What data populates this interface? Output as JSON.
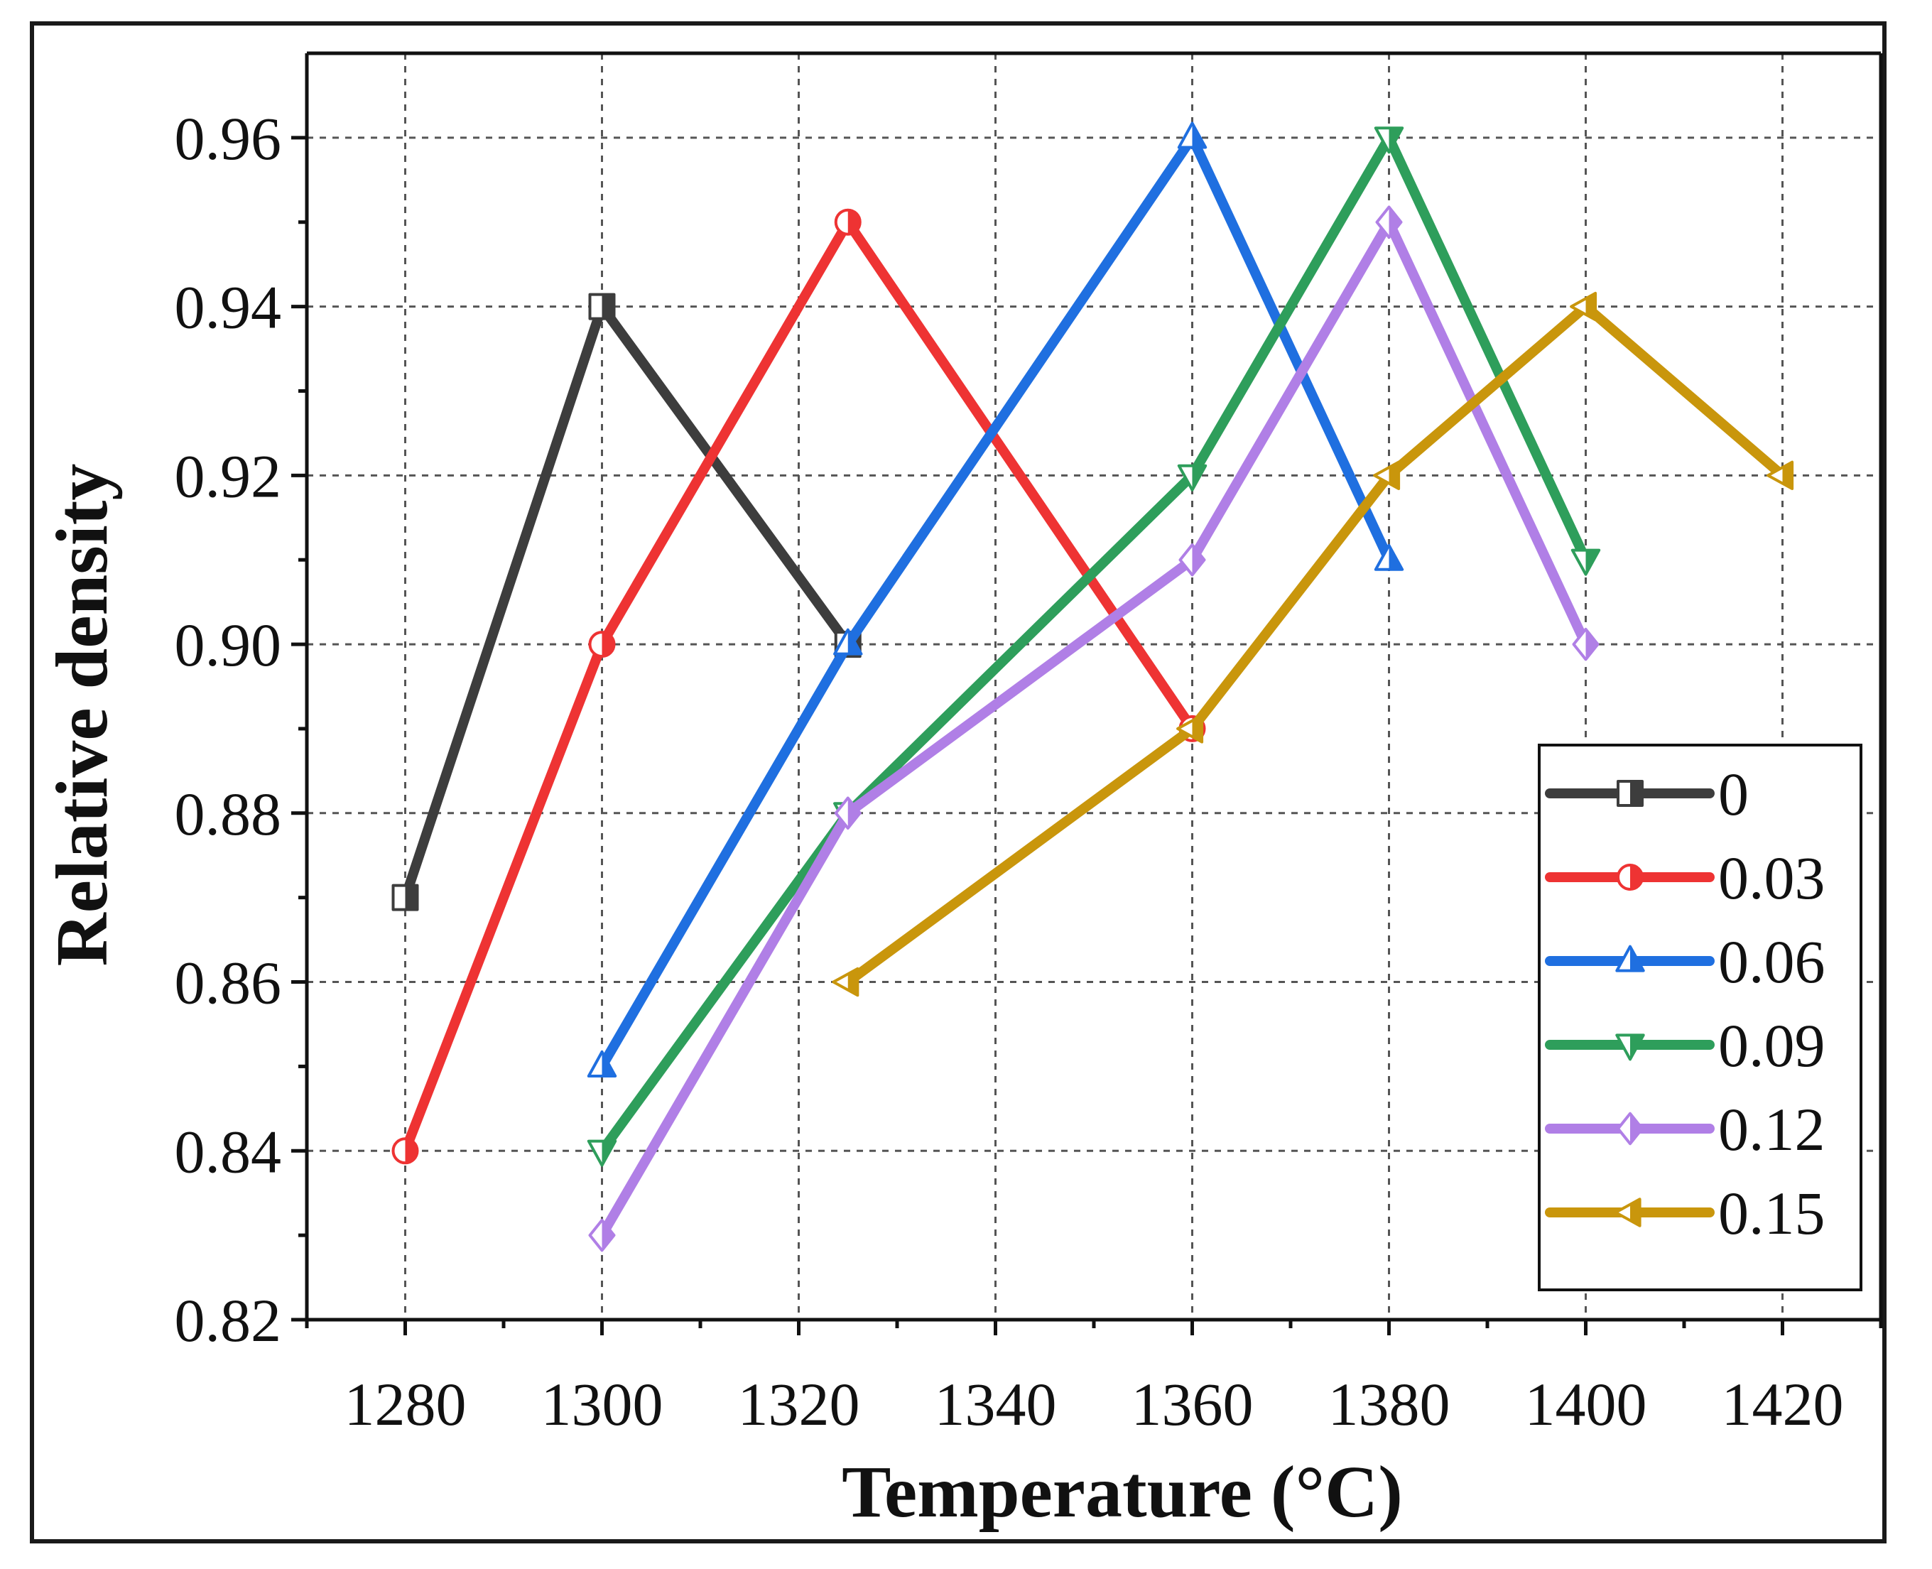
{
  "chart_data": {
    "type": "line",
    "title": "",
    "xlabel": "Temperature (°C)",
    "ylabel": "Relative density",
    "xlim": [
      1270,
      1430
    ],
    "ylim": [
      0.82,
      0.97
    ],
    "xticks": [
      1280,
      1300,
      1320,
      1340,
      1360,
      1380,
      1400,
      1420
    ],
    "yticks": [
      0.82,
      0.84,
      0.86,
      0.88,
      0.9,
      0.92,
      0.94,
      0.96
    ],
    "xtick_labels": [
      "1280",
      "1300",
      "1320",
      "1340",
      "1360",
      "1380",
      "1400",
      "1420"
    ],
    "ytick_labels": [
      "0.82",
      "0.84",
      "0.86",
      "0.88",
      "0.90",
      "0.92",
      "0.94",
      "0.96"
    ],
    "grid": true,
    "legend_position": "bottom-right",
    "series": [
      {
        "name": "0",
        "color": "#3d3d3d",
        "marker": "square",
        "x": [
          1280,
          1300,
          1325
        ],
        "y": [
          0.87,
          0.94,
          0.9
        ]
      },
      {
        "name": "0.03",
        "color": "#ee3333",
        "marker": "circle",
        "x": [
          1280,
          1300,
          1325,
          1360
        ],
        "y": [
          0.84,
          0.9,
          0.95,
          0.89
        ]
      },
      {
        "name": "0.06",
        "color": "#1f6fe0",
        "marker": "triangle-up",
        "x": [
          1300,
          1325,
          1360,
          1380
        ],
        "y": [
          0.85,
          0.9,
          0.96,
          0.91
        ]
      },
      {
        "name": "0.09",
        "color": "#2e9e5b",
        "marker": "triangle-down",
        "x": [
          1300,
          1325,
          1360,
          1380,
          1400
        ],
        "y": [
          0.84,
          0.88,
          0.92,
          0.96,
          0.91
        ]
      },
      {
        "name": "0.12",
        "color": "#b07fe6",
        "marker": "diamond",
        "x": [
          1300,
          1325,
          1360,
          1380,
          1400
        ],
        "y": [
          0.83,
          0.88,
          0.91,
          0.95,
          0.9
        ]
      },
      {
        "name": "0.15",
        "color": "#c9960c",
        "marker": "triangle-left",
        "x": [
          1325,
          1360,
          1380,
          1400,
          1420
        ],
        "y": [
          0.86,
          0.89,
          0.92,
          0.94,
          0.92
        ]
      }
    ]
  }
}
